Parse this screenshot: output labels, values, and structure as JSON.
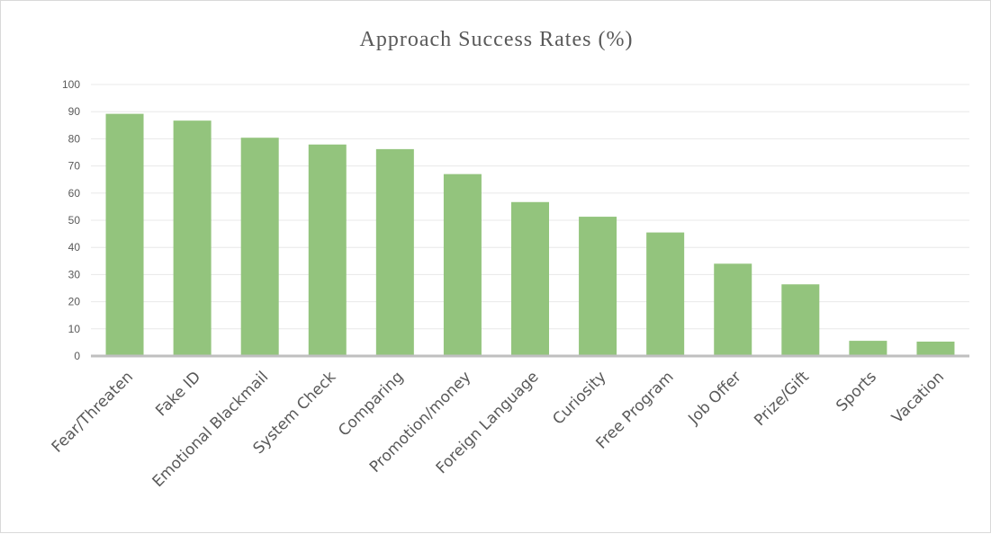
{
  "chart_data": {
    "type": "bar",
    "title": "Approach Success Rates (%)",
    "xlabel": "",
    "ylabel": "",
    "categories": [
      "Fear/Threaten",
      "Fake ID",
      "Emotional Blackmail",
      "System Check",
      "Comparing",
      "Promotion/money",
      "Foreign Language",
      "Curiosity",
      "Free Program",
      "Job Offer",
      "Prize/Gift",
      "Sports",
      "Vacation"
    ],
    "values": [
      89.2,
      86.7,
      80.4,
      77.9,
      76.2,
      67,
      56.7,
      51.3,
      45.5,
      34,
      26.4,
      5.6,
      5.3
    ],
    "ylim": [
      0,
      100
    ],
    "yticks": [
      0,
      10,
      20,
      30,
      40,
      50,
      60,
      70,
      80,
      90,
      100
    ],
    "grid": true,
    "legend": "none",
    "colors": {
      "bar": "#93c47d",
      "grid": "#e8e8e8",
      "axis": "#bfbfbf",
      "text": "#595959"
    }
  }
}
